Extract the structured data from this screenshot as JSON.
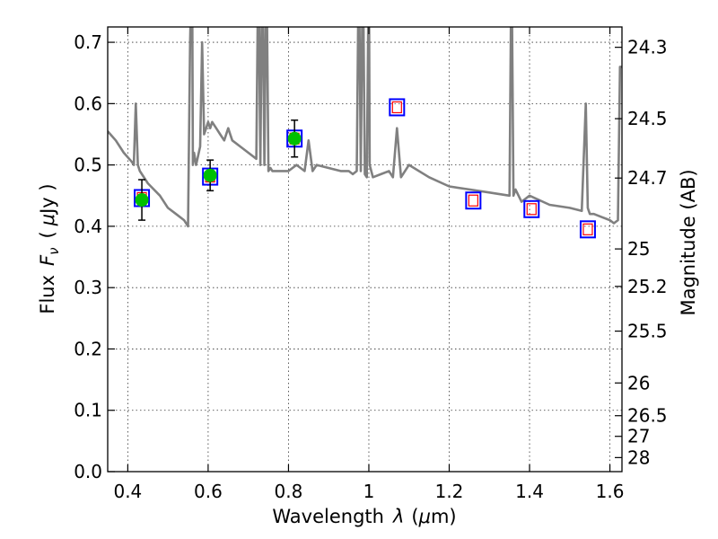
{
  "chart_data": {
    "type": "scatter",
    "xlabel_text": "Wavelength",
    "xlabel_symbol": "λ",
    "xlabel_unit_open": "(",
    "xlabel_unit_mu": "μ",
    "xlabel_unit_rest": "m)",
    "ylabel_text": "Flux",
    "ylabel_symbol": "F",
    "ylabel_sub": "ν",
    "ylabel_unit_open": "(",
    "ylabel_unit_mu": "μ",
    "ylabel_unit_rest": "Jy )",
    "y2label": "Magnitude (AB)",
    "xlim": [
      0.35,
      1.63
    ],
    "ylim": [
      0.0,
      0.725
    ],
    "grid": true,
    "x_ticks": [
      0.4,
      0.6,
      0.8,
      1.0,
      1.2,
      1.4,
      1.6
    ],
    "x_tick_labels": [
      "0.4",
      "0.6",
      "0.8",
      "1",
      "1.2",
      "1.4",
      "1.6"
    ],
    "y_ticks": [
      0.0,
      0.1,
      0.2,
      0.3,
      0.4,
      0.5,
      0.6,
      0.7
    ],
    "y_tick_labels": [
      "0.0",
      "0.1",
      "0.2",
      "0.3",
      "0.4",
      "0.5",
      "0.6",
      "0.7"
    ],
    "y2_tick_labels": [
      "24.3",
      "24.5",
      "24.7",
      "25",
      "25.2",
      "25.5",
      "26",
      "26.5",
      "27",
      "28"
    ],
    "colors": {
      "spectrum": "#808080",
      "observed": "#00c000",
      "error_bar": "#000000",
      "model_box": "#0000ff",
      "model_inner": "#ff0000"
    },
    "series": [
      {
        "kind": "line",
        "x": [
          0.35,
          0.37,
          0.39,
          0.41,
          0.415,
          0.42,
          0.425,
          0.43,
          0.45,
          0.48,
          0.5,
          0.52,
          0.54,
          0.55,
          0.555,
          0.56,
          0.562,
          0.565,
          0.57,
          0.58,
          0.585,
          0.59,
          0.595,
          0.6,
          0.605,
          0.61,
          0.62,
          0.63,
          0.64,
          0.65,
          0.655,
          0.66,
          0.68,
          0.7,
          0.72,
          0.725,
          0.73,
          0.735,
          0.74,
          0.745,
          0.75,
          0.755,
          0.76,
          0.78,
          0.8,
          0.82,
          0.84,
          0.85,
          0.86,
          0.87,
          0.9,
          0.93,
          0.95,
          0.96,
          0.97,
          0.975,
          0.98,
          0.985,
          0.99,
          0.995,
          1.0,
          1.002,
          1.01,
          1.03,
          1.05,
          1.06,
          1.07,
          1.08,
          1.1,
          1.15,
          1.2,
          1.25,
          1.3,
          1.35,
          1.355,
          1.36,
          1.365,
          1.38,
          1.4,
          1.45,
          1.5,
          1.53,
          1.54,
          1.545,
          1.55,
          1.56,
          1.58,
          1.6,
          1.61,
          1.62,
          1.625,
          1.63
        ],
        "y": [
          0.555,
          0.54,
          0.52,
          0.505,
          0.5,
          0.6,
          0.5,
          0.49,
          0.47,
          0.45,
          0.43,
          0.42,
          0.41,
          0.4,
          0.7,
          0.85,
          0.5,
          0.52,
          0.5,
          0.53,
          0.7,
          0.55,
          0.56,
          0.57,
          0.56,
          0.57,
          0.56,
          0.55,
          0.54,
          0.56,
          0.55,
          0.54,
          0.53,
          0.52,
          0.51,
          0.85,
          0.5,
          0.85,
          0.5,
          0.85,
          0.49,
          0.495,
          0.49,
          0.49,
          0.49,
          0.5,
          0.49,
          0.54,
          0.49,
          0.5,
          0.495,
          0.49,
          0.49,
          0.485,
          0.49,
          0.85,
          0.49,
          0.85,
          0.485,
          0.48,
          0.85,
          0.5,
          0.48,
          0.485,
          0.49,
          0.48,
          0.56,
          0.48,
          0.5,
          0.48,
          0.465,
          0.46,
          0.455,
          0.45,
          0.85,
          0.45,
          0.46,
          0.44,
          0.45,
          0.435,
          0.43,
          0.425,
          0.6,
          0.43,
          0.42,
          0.42,
          0.415,
          0.41,
          0.405,
          0.41,
          0.66,
          0.66
        ]
      },
      {
        "kind": "points",
        "x": [
          0.435,
          0.605,
          0.815
        ],
        "y": [
          0.443,
          0.483,
          0.543
        ],
        "yerr": [
          0.033,
          0.025,
          0.03
        ]
      },
      {
        "kind": "model_points",
        "x": [
          0.435,
          0.605,
          0.815,
          1.07,
          1.26,
          1.405,
          1.545
        ],
        "y": [
          0.446,
          0.481,
          0.543,
          0.594,
          0.442,
          0.428,
          0.395
        ]
      }
    ]
  }
}
